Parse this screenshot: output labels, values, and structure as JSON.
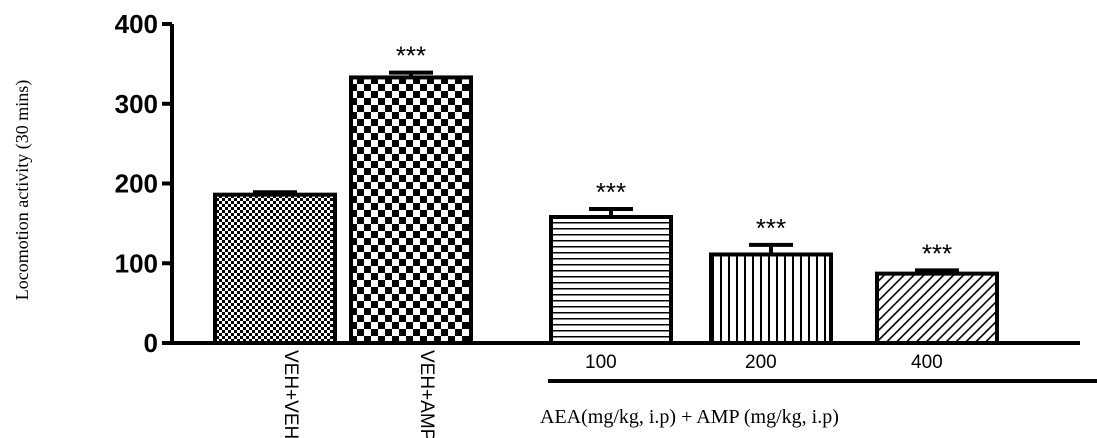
{
  "chart_data": {
    "type": "bar",
    "categories": [
      "VEH+VEH",
      "VEH+AMP",
      "100",
      "200",
      "400"
    ],
    "values": [
      186,
      333,
      158,
      111,
      87
    ],
    "errors": [
      3,
      6,
      10,
      12,
      4
    ],
    "significance": [
      "",
      "***",
      "***",
      "***",
      "***"
    ],
    "patterns": [
      "checker-fine",
      "checker-coarse",
      "horizontal-lines",
      "vertical-lines",
      "diagonal-lines"
    ],
    "ylabel": "Locomotion activity (30 mins)",
    "xlabel": "AEA(mg/kg, i.p) + AMP (mg/kg, i.p)",
    "ylim": [
      0,
      400
    ],
    "yticks": [
      0,
      100,
      200,
      300,
      400
    ],
    "grid": false,
    "bar_color": "#000000"
  }
}
